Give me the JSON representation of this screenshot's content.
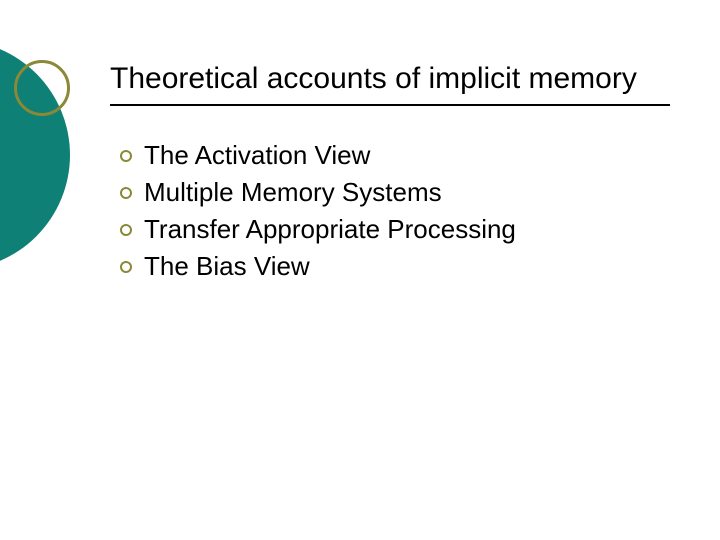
{
  "slide": {
    "title": "Theoretical accounts of implicit memory",
    "bullets": [
      {
        "text": "The Activation View"
      },
      {
        "text": "Multiple Memory Systems"
      },
      {
        "text": "Transfer Appropriate Processing"
      },
      {
        "text": "The Bias View"
      }
    ],
    "styling": {
      "background_color": "#ffffff",
      "title_color": "#000000",
      "title_fontsize": 30,
      "title_underline_color": "#000000",
      "bullet_text_color": "#000000",
      "bullet_text_fontsize": 26,
      "bullet_marker_border_color": "#898936",
      "decor_teal_color": "#0f8075",
      "decor_olive_border_color": "#898936"
    }
  }
}
